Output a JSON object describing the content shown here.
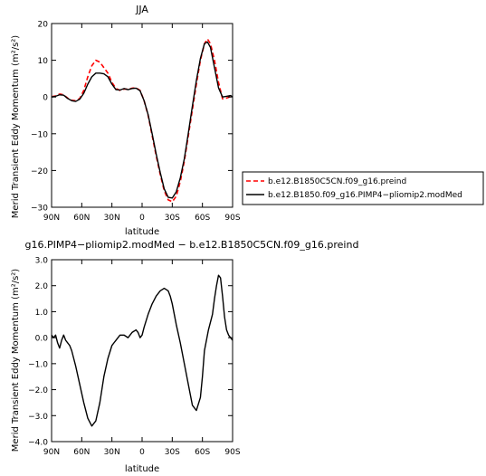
{
  "chart_data": [
    {
      "type": "line",
      "title": "JJA",
      "xlabel": "latitude",
      "ylabel": "Merid Transient Eddy Momentum (m²/s²)",
      "xlim": [
        90,
        -90
      ],
      "ylim": [
        -30,
        20
      ],
      "xticks": [
        90,
        60,
        30,
        0,
        -30,
        -60,
        -90
      ],
      "xtick_labels": [
        "90N",
        "60N",
        "30N",
        "0",
        "30S",
        "60S",
        "90S"
      ],
      "yticks": [
        -30,
        -20,
        -10,
        0,
        10,
        20
      ],
      "ytick_labels": [
        "−30",
        "−20",
        "−10",
        "0",
        "10",
        "20"
      ],
      "grid": false,
      "legend_position": "right",
      "series": [
        {
          "name": "b.e12.B1850C5CN.f09_g16.preind",
          "color": "#ff0000",
          "style": "dashed",
          "x": [
            90,
            86,
            82,
            78,
            74,
            70,
            66,
            62,
            58,
            54,
            50,
            46,
            42,
            38,
            34,
            30,
            26,
            22,
            18,
            14,
            10,
            6,
            2,
            -2,
            -6,
            -10,
            -14,
            -18,
            -22,
            -26,
            -30,
            -34,
            -38,
            -42,
            -46,
            -50,
            -54,
            -58,
            -62,
            -65,
            -68,
            -72,
            -76,
            -80,
            -84,
            -88,
            -90
          ],
          "y": [
            0.1,
            0.3,
            0.8,
            0.6,
            -0.3,
            -0.9,
            -1.0,
            -0.4,
            1.8,
            5.5,
            8.5,
            10.0,
            9.5,
            8.0,
            6.5,
            4.0,
            2.3,
            1.8,
            2.2,
            2.1,
            2.4,
            2.5,
            1.8,
            -1.0,
            -5.0,
            -10.5,
            -16.0,
            -21.0,
            -25.5,
            -28.0,
            -28.5,
            -27.0,
            -23.0,
            -17.5,
            -10.5,
            -3.5,
            3.5,
            10.0,
            14.5,
            15.8,
            14.5,
            10.0,
            4.0,
            -0.5,
            -0.3,
            0.1,
            0.0
          ]
        },
        {
          "name": "b.e12.B1850.f09_g16.PIMP4−pliomip2.modMed",
          "color": "#000000",
          "style": "solid",
          "x": [
            90,
            86,
            82,
            78,
            74,
            70,
            66,
            62,
            58,
            54,
            50,
            46,
            42,
            38,
            34,
            30,
            26,
            22,
            18,
            14,
            10,
            6,
            2,
            -2,
            -6,
            -10,
            -14,
            -18,
            -22,
            -26,
            -30,
            -34,
            -38,
            -42,
            -46,
            -50,
            -54,
            -58,
            -62,
            -65,
            -68,
            -72,
            -76,
            -80,
            -84,
            -88,
            -90
          ],
          "y": [
            0.0,
            0.2,
            0.6,
            0.5,
            -0.4,
            -1.0,
            -1.2,
            -0.6,
            1.0,
            3.5,
            5.5,
            6.5,
            6.5,
            6.3,
            5.5,
            3.5,
            2.0,
            1.9,
            2.3,
            2.0,
            2.3,
            2.4,
            1.7,
            -1.0,
            -4.8,
            -10.0,
            -15.5,
            -20.5,
            -25.0,
            -27.3,
            -27.5,
            -25.8,
            -22.0,
            -16.8,
            -9.8,
            -2.5,
            4.5,
            10.5,
            14.5,
            15.0,
            13.5,
            8.0,
            2.5,
            0.0,
            0.2,
            0.4,
            0.0
          ]
        }
      ]
    },
    {
      "type": "line",
      "title": "g16.PIMP4−pliomip2.modMed − b.e12.B1850C5CN.f09_g16.preind",
      "xlabel": "latitude",
      "ylabel": "Merid Transient Eddy Momentum (m²/s²)",
      "xlim": [
        90,
        -90
      ],
      "ylim": [
        -4.0,
        3.0
      ],
      "xticks": [
        90,
        60,
        30,
        0,
        -30,
        -60,
        -90
      ],
      "xtick_labels": [
        "90N",
        "60N",
        "30N",
        "0",
        "30S",
        "60S",
        "90S"
      ],
      "yticks": [
        -4.0,
        -3.0,
        -2.0,
        -1.0,
        0.0,
        1.0,
        2.0,
        3.0
      ],
      "ytick_labels": [
        "−4.0",
        "−3.0",
        "−2.0",
        "−1.0",
        "0.0",
        "1.0",
        "2.0",
        "3.0"
      ],
      "grid": false,
      "series": [
        {
          "color": "#000000",
          "style": "solid",
          "x": [
            90,
            88,
            86,
            84,
            82,
            80,
            78,
            76,
            74,
            72,
            70,
            66,
            62,
            58,
            54,
            50,
            46,
            42,
            40,
            38,
            34,
            30,
            26,
            22,
            18,
            14,
            10,
            6,
            4,
            2,
            0,
            -2,
            -6,
            -10,
            -14,
            -18,
            -22,
            -26,
            -28,
            -30,
            -34,
            -38,
            -42,
            -46,
            -50,
            -54,
            -58,
            -60,
            -62,
            -66,
            -70,
            -72,
            -74,
            -76,
            -78,
            -80,
            -82,
            -84,
            -86,
            -88,
            -90
          ],
          "y": [
            0.1,
            0.0,
            0.1,
            -0.2,
            -0.4,
            -0.1,
            0.1,
            -0.1,
            -0.2,
            -0.3,
            -0.5,
            -1.1,
            -1.8,
            -2.5,
            -3.1,
            -3.4,
            -3.2,
            -2.5,
            -2.0,
            -1.5,
            -0.8,
            -0.3,
            -0.1,
            0.1,
            0.1,
            0.0,
            0.2,
            0.3,
            0.2,
            0.0,
            0.1,
            0.4,
            0.9,
            1.3,
            1.6,
            1.8,
            1.9,
            1.8,
            1.6,
            1.3,
            0.5,
            -0.2,
            -1.0,
            -1.8,
            -2.6,
            -2.8,
            -2.3,
            -1.5,
            -0.5,
            0.3,
            0.9,
            1.5,
            2.0,
            2.4,
            2.3,
            1.6,
            0.8,
            0.3,
            0.1,
            0.0,
            -0.1
          ]
        }
      ]
    }
  ]
}
